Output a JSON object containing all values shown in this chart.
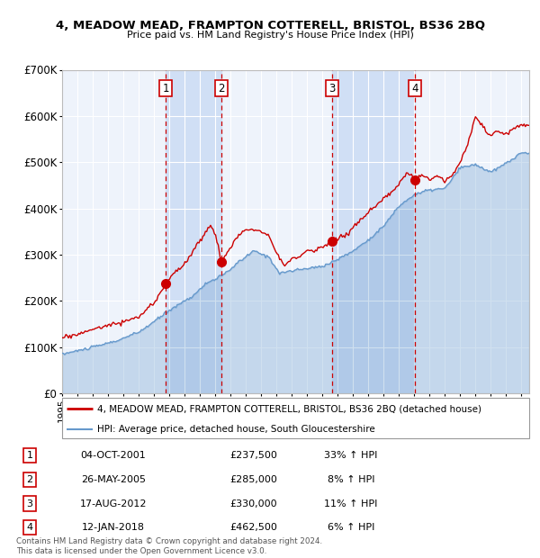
{
  "title1": "4, MEADOW MEAD, FRAMPTON COTTERELL, BRISTOL, BS36 2BQ",
  "title2": "Price paid vs. HM Land Registry's House Price Index (HPI)",
  "legend_line1": "4, MEADOW MEAD, FRAMPTON COTTERELL, BRISTOL, BS36 2BQ (detached house)",
  "legend_line2": "HPI: Average price, detached house, South Gloucestershire",
  "transactions": [
    {
      "num": 1,
      "x": 2001.757,
      "price": 237500
    },
    {
      "num": 2,
      "x": 2005.4,
      "price": 285000
    },
    {
      "num": 3,
      "x": 2012.627,
      "price": 330000
    },
    {
      "num": 4,
      "x": 2018.029,
      "price": 462500
    }
  ],
  "table_rows": [
    {
      "num": 1,
      "date": "04-OCT-2001",
      "price": "£237,500",
      "pct": "33% ↑ HPI"
    },
    {
      "num": 2,
      "date": "26-MAY-2005",
      "price": "£285,000",
      "pct": "8% ↑ HPI"
    },
    {
      "num": 3,
      "date": "17-AUG-2012",
      "price": "£330,000",
      "pct": "11% ↑ HPI"
    },
    {
      "num": 4,
      "date": "12-JAN-2018",
      "price": "£462,500",
      "pct": "6% ↑ HPI"
    }
  ],
  "footer": "Contains HM Land Registry data © Crown copyright and database right 2024.\nThis data is licensed under the Open Government Licence v3.0.",
  "ylim": [
    0,
    700000
  ],
  "xlim_start": 1995.0,
  "xlim_end": 2025.5,
  "red_color": "#cc0000",
  "blue_color": "#6699cc",
  "plot_bg_color": "#eef3fb",
  "shade_color": "#d0dff5",
  "grid_color": "#ffffff"
}
